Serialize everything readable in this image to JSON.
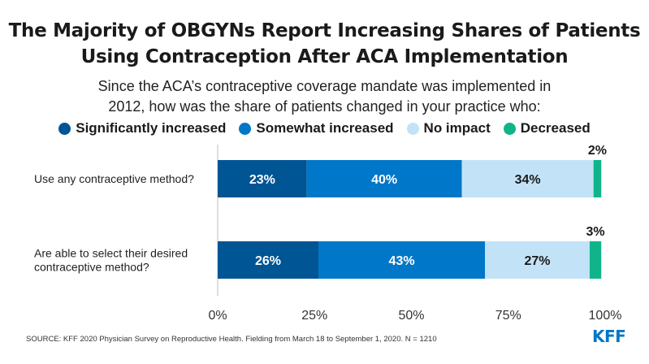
{
  "title_lines": [
    "The Majority of OBGYNs Report Increasing Shares of Patients",
    "Using Contraception After ACA Implementation"
  ],
  "subtitle_lines": [
    "Since the ACA’s contraceptive coverage mandate was implemented in",
    "2012, how was the share of patients changed in your practice who:"
  ],
  "source": "SOURCE: KFF 2020 Physician Survey on Reproductive Health. Fielding from March 18 to September 1, 2020. N = 1210",
  "logo_text": "KFF",
  "chart_data": {
    "type": "bar",
    "orientation": "horizontal",
    "stacked": true,
    "categories": [
      [
        "Use any contraceptive method?"
      ],
      [
        "Are able to select their desired",
        "contraceptive method?"
      ]
    ],
    "series": [
      {
        "name": "Significantly increased",
        "color": "#005595",
        "values": [
          23,
          26
        ],
        "labels": [
          "23%",
          "26%"
        ],
        "label_color": "#ffffff"
      },
      {
        "name": "Somewhat increased",
        "color": "#0077c8",
        "values": [
          40,
          43
        ],
        "labels": [
          "40%",
          "43%"
        ],
        "label_color": "#ffffff"
      },
      {
        "name": "No impact",
        "color": "#c2e3f7",
        "values": [
          34,
          27
        ],
        "labels": [
          "34%",
          "27%"
        ],
        "label_color": "#1a1a1a"
      },
      {
        "name": "Decreased",
        "color": "#10b48a",
        "values": [
          2,
          3
        ],
        "labels": [
          "2%",
          "3%"
        ],
        "label_color": "#1a1a1a"
      }
    ],
    "xlim": [
      0,
      100
    ],
    "xticks": [
      0,
      25,
      50,
      75,
      100
    ],
    "xtick_labels": [
      "0%",
      "25%",
      "50%",
      "75%",
      "100%"
    ],
    "legend_position": "top"
  }
}
